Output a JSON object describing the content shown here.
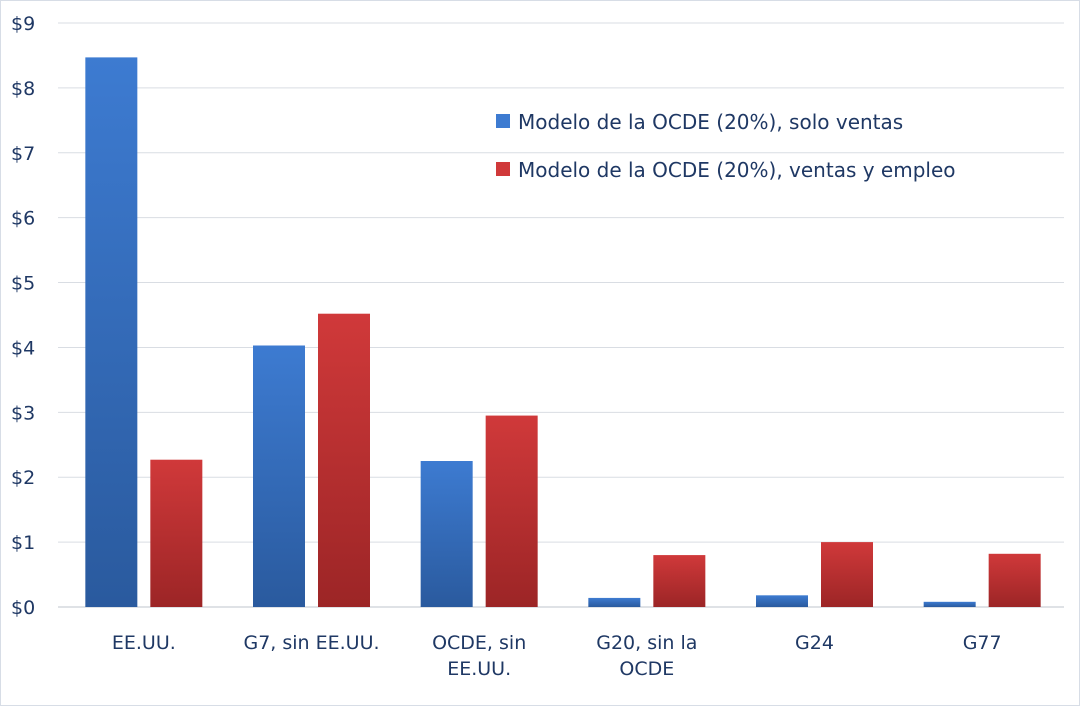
{
  "chart_data": {
    "type": "bar",
    "title": "",
    "xlabel": "",
    "ylabel": "",
    "ylim": [
      0,
      9
    ],
    "y_ticks": [
      0,
      1,
      2,
      3,
      4,
      5,
      6,
      7,
      8,
      9
    ],
    "y_tick_labels": [
      "$0",
      "$1",
      "$2",
      "$3",
      "$4",
      "$5",
      "$6",
      "$7",
      "$8",
      "$9"
    ],
    "grid": true,
    "legend_position": "top-right",
    "categories": [
      [
        "EE.UU."
      ],
      [
        "G7, sin EE.UU."
      ],
      [
        "OCDE, sin",
        "EE.UU."
      ],
      [
        "G20, sin la",
        "OCDE"
      ],
      [
        "G24"
      ],
      [
        "G77"
      ]
    ],
    "series": [
      {
        "name": "Modelo de la OCDE (20%), solo ventas",
        "color": "#3d7bd1",
        "color_dark": "#2a5a9e",
        "values": [
          8.47,
          4.03,
          2.25,
          0.14,
          0.18,
          0.08
        ]
      },
      {
        "name": "Modelo de la OCDE (20%), ventas y empleo",
        "color": "#d0393a",
        "color_dark": "#9c2526",
        "values": [
          2.27,
          4.52,
          2.95,
          0.8,
          1.0,
          0.82
        ]
      }
    ]
  }
}
